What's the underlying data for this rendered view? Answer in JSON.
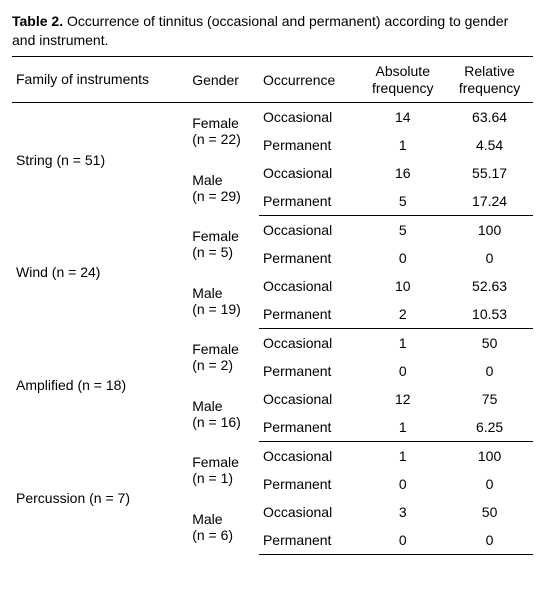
{
  "caption": {
    "label": "Table 2.",
    "text": "Occurrence of tinnitus (occasional and permanent) according to gender and instrument."
  },
  "headers": {
    "family": "Family of instruments",
    "gender": "Gender",
    "occurrence": "Occurrence",
    "abs1": "Absolute",
    "abs2": "frequency",
    "rel1": "Relative",
    "rel2": "frequency"
  },
  "groups": [
    {
      "family": "String (n = 51)",
      "sub": [
        {
          "gender1": "Female",
          "gender2": "(n = 22)",
          "rows": [
            {
              "occ": "Occasional",
              "abs": "14",
              "rel": "63.64"
            },
            {
              "occ": "Permanent",
              "abs": "1",
              "rel": "4.54"
            }
          ]
        },
        {
          "gender1": "Male",
          "gender2": "(n = 29)",
          "rows": [
            {
              "occ": "Occasional",
              "abs": "16",
              "rel": "55.17"
            },
            {
              "occ": "Permanent",
              "abs": "5",
              "rel": "17.24"
            }
          ]
        }
      ]
    },
    {
      "family": "Wind (n = 24)",
      "sub": [
        {
          "gender1": "Female",
          "gender2": "(n = 5)",
          "rows": [
            {
              "occ": "Occasional",
              "abs": "5",
              "rel": "100"
            },
            {
              "occ": "Permanent",
              "abs": "0",
              "rel": "0"
            }
          ]
        },
        {
          "gender1": "Male",
          "gender2": "(n = 19)",
          "rows": [
            {
              "occ": "Occasional",
              "abs": "10",
              "rel": "52.63"
            },
            {
              "occ": "Permanent",
              "abs": "2",
              "rel": "10.53"
            }
          ]
        }
      ]
    },
    {
      "family": "Amplified (n = 18)",
      "sub": [
        {
          "gender1": "Female",
          "gender2": "(n = 2)",
          "rows": [
            {
              "occ": "Occasional",
              "abs": "1",
              "rel": "50"
            },
            {
              "occ": "Permanent",
              "abs": "0",
              "rel": "0"
            }
          ]
        },
        {
          "gender1": "Male",
          "gender2": "(n = 16)",
          "rows": [
            {
              "occ": "Occasional",
              "abs": "12",
              "rel": "75"
            },
            {
              "occ": "Permanent",
              "abs": "1",
              "rel": "6.25"
            }
          ]
        }
      ]
    },
    {
      "family": "Percussion (n = 7)",
      "sub": [
        {
          "gender1": "Female",
          "gender2": "(n = 1)",
          "rows": [
            {
              "occ": "Occasional",
              "abs": "1",
              "rel": "100"
            },
            {
              "occ": "Permanent",
              "abs": "0",
              "rel": "0"
            }
          ]
        },
        {
          "gender1": "Male",
          "gender2": "(n = 6)",
          "rows": [
            {
              "occ": "Occasional",
              "abs": "3",
              "rel": "50"
            },
            {
              "occ": "Permanent",
              "abs": "0",
              "rel": "0"
            }
          ]
        }
      ]
    }
  ]
}
